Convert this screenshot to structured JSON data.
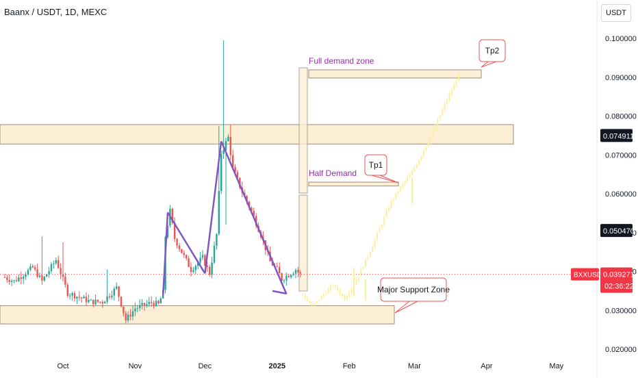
{
  "header": {
    "symbol_title": "Baanx / USDT, 1D, MEXC"
  },
  "currency_button": "USDT",
  "chart_data": {
    "type": "candlestick",
    "title": "Baanx / USDT, 1D, MEXC",
    "xlabel": "",
    "ylabel": "",
    "ylim": [
      0.02,
      0.1
    ],
    "y_ticks": [
      "0.100000",
      "0.090000",
      "0.080000",
      "0.070000",
      "0.060000",
      "0.050000",
      "0.040000",
      "0.030000",
      "0.020000"
    ],
    "x_ticks": [
      "Oct",
      "Nov",
      "Dec",
      "2025",
      "Feb",
      "Mar",
      "Apr",
      "May"
    ],
    "price_labels": [
      {
        "value": "0.074911",
        "price": 0.07491,
        "style": "dark"
      },
      {
        "value": "0.050470",
        "price": 0.05047,
        "style": "dark"
      },
      {
        "value": "0.039271",
        "price": 0.03927,
        "style": "red",
        "ticker": "BXXUSDT",
        "countdown": "02:36:22"
      }
    ],
    "candles": [],
    "annotations": {
      "zones": [
        {
          "label": "Major Support Zone",
          "price_top": 0.0312,
          "price_bottom": 0.0265,
          "end": "Jan 29"
        },
        {
          "label": "",
          "price_top": 0.0778,
          "price_bottom": 0.0728,
          "end": "Mar 28"
        },
        {
          "label": "Full demand zone",
          "price_top": 0.0919,
          "price_bottom": 0.0898,
          "end": "Mar 13"
        },
        {
          "label": "Half Demand",
          "price_top": 0.063,
          "price_bottom": 0.062,
          "end": "Jan 25"
        }
      ],
      "callouts": [
        "Tp1",
        "Tp2",
        "Major Support Zone"
      ]
    }
  },
  "colors": {
    "up": "#26a69a",
    "down": "#ef5350",
    "zone_fill": "#fdefd6",
    "zone_stroke": "#9a8c7a",
    "pattern_line": "#7e57c2",
    "projection": "#fcef9c",
    "text": "#131722",
    "label_purple": "#9c27b0",
    "callout_stroke": "#ef5350"
  }
}
